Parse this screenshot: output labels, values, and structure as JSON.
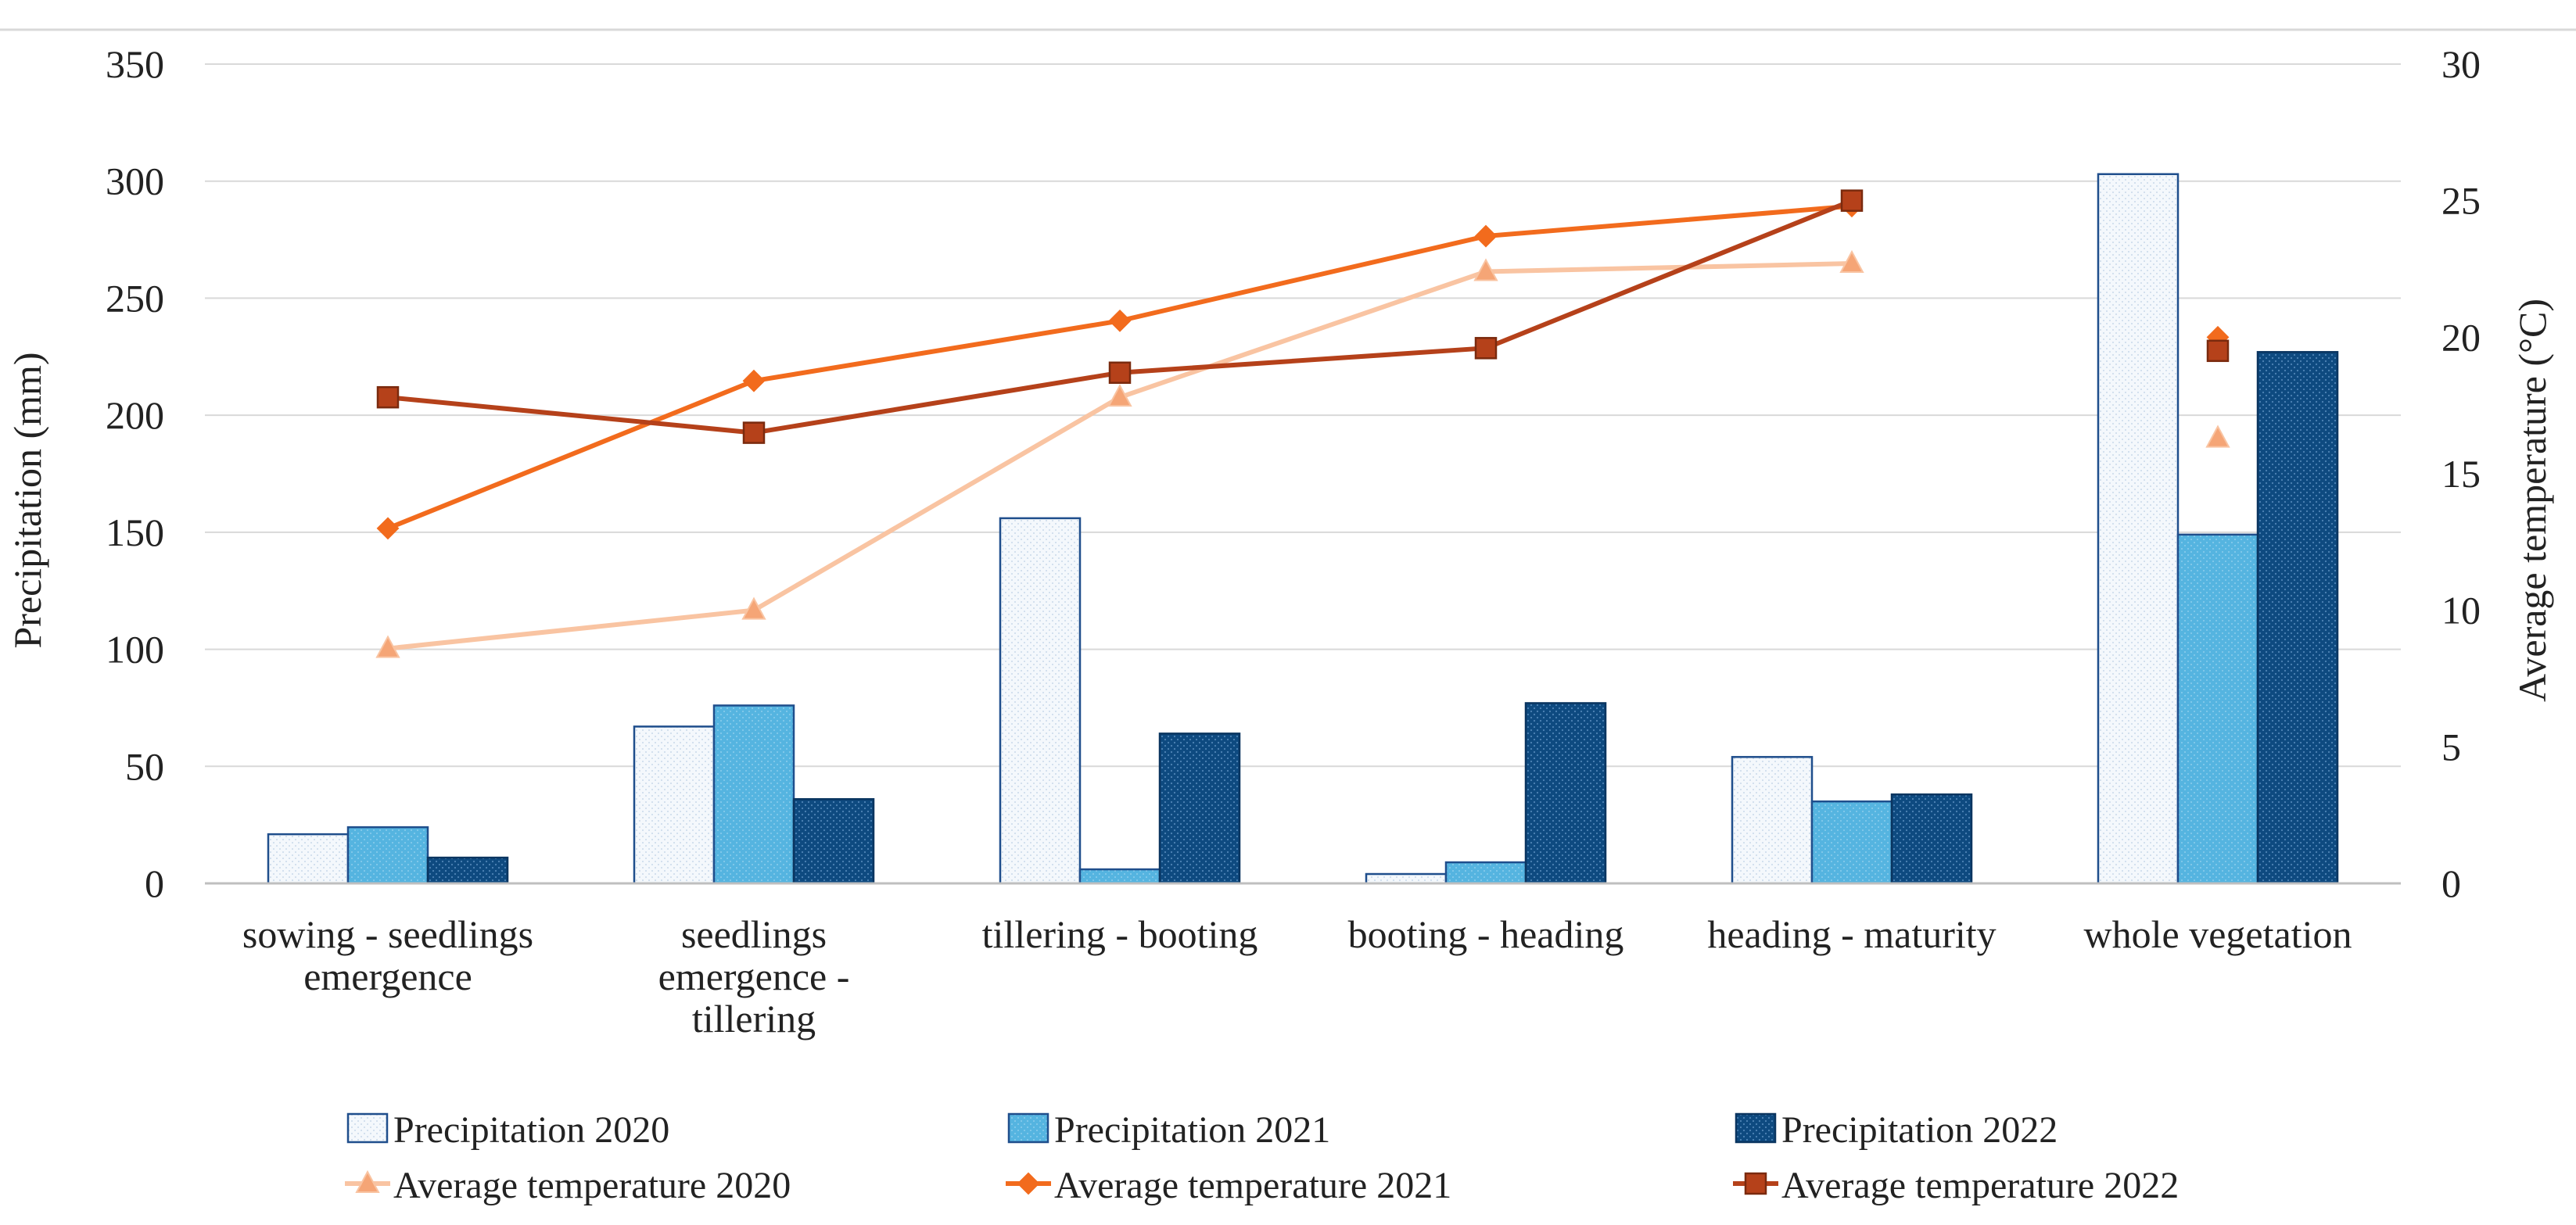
{
  "chart_data": {
    "type": "bar",
    "categories": [
      [
        "sowing - seedlings",
        "emergence"
      ],
      [
        "seedlings",
        "emergence -",
        "tillering"
      ],
      [
        "tillering - booting"
      ],
      [
        "booting - heading"
      ],
      [
        "heading - maturity"
      ],
      [
        "whole vegetation"
      ]
    ],
    "series": [
      {
        "name": "Precipitation 2020",
        "kind": "bar",
        "axis": "left",
        "values": [
          21,
          67,
          156,
          4,
          54,
          303
        ],
        "fill": "#f2f7fb",
        "stroke": "#1f4e8c"
      },
      {
        "name": "Precipitation 2021",
        "kind": "bar",
        "axis": "left",
        "values": [
          24,
          76,
          6,
          9,
          35,
          149
        ],
        "fill": "#55b4e0",
        "stroke": "#1f4e8c"
      },
      {
        "name": "Precipitation 2022",
        "kind": "bar",
        "axis": "left",
        "values": [
          11,
          36,
          64,
          77,
          38,
          227
        ],
        "fill": "#0e4a80",
        "stroke": "#0a3560"
      },
      {
        "name": "Average temperature 2020",
        "kind": "line",
        "axis": "right",
        "values": [
          8.6,
          10.0,
          17.8,
          22.4,
          22.7,
          16.3
        ],
        "color": "#f9c4a2",
        "marker": "triangle",
        "marker_fill": "#f5a576"
      },
      {
        "name": "Average temperature 2021",
        "kind": "line",
        "axis": "right",
        "values": [
          13.0,
          18.4,
          20.6,
          23.7,
          24.8,
          20.0
        ],
        "color": "#f26b1d",
        "marker": "diamond",
        "marker_fill": "#f26b1d"
      },
      {
        "name": "Average temperature 2022",
        "kind": "line",
        "axis": "right",
        "values": [
          17.8,
          16.5,
          18.7,
          19.6,
          25.0,
          19.5
        ],
        "color": "#b5411a",
        "marker": "square",
        "marker_fill": "#b5411a"
      }
    ],
    "lines_break_before_last": true,
    "ylabel": "Precipitation (mm)",
    "y2label": "Average temperature (°C)",
    "ylim": [
      0,
      350
    ],
    "y2lim": [
      0,
      30
    ],
    "yticks": [
      "0",
      "50",
      "100",
      "150",
      "200",
      "250",
      "300",
      "350"
    ],
    "y2ticks": [
      "0",
      "5",
      "10",
      "15",
      "20",
      "25",
      "30"
    ],
    "grid": true,
    "legend": "bottom"
  }
}
